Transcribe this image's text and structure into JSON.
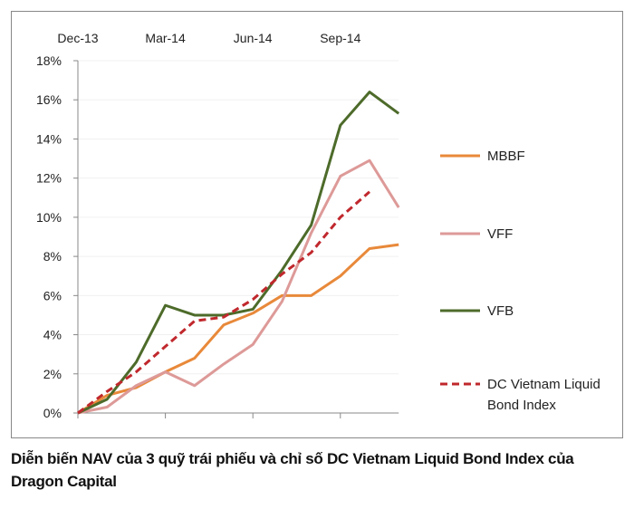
{
  "chart_data": {
    "type": "line",
    "x": [
      "Dec-13",
      "Jan-14",
      "Feb-14",
      "Mar-14",
      "Apr-14",
      "May-14",
      "Jun-14",
      "Jul-14",
      "Aug-14",
      "Sep-14",
      "Oct-14",
      "Nov-14"
    ],
    "x_tick_labels": [
      "Dec-13",
      "Mar-14",
      "Jun-14",
      "Sep-14"
    ],
    "y_tick_labels": [
      "0%",
      "2%",
      "4%",
      "6%",
      "8%",
      "10%",
      "12%",
      "14%",
      "16%",
      "18%"
    ],
    "ylim": [
      0,
      18
    ],
    "grid": true,
    "legend_position": "right",
    "series": [
      {
        "name": "MBBF",
        "color": "#e8893a",
        "dashed": false,
        "values": [
          0,
          0.9,
          1.3,
          2.1,
          2.8,
          4.5,
          5.1,
          6.0,
          6.0,
          7.0,
          8.4,
          8.6
        ]
      },
      {
        "name": "VFF",
        "color": "#dd9a98",
        "dashed": false,
        "values": [
          0,
          0.3,
          1.4,
          2.1,
          1.4,
          2.5,
          3.5,
          5.7,
          9.2,
          12.1,
          12.9,
          10.5
        ]
      },
      {
        "name": "VFB",
        "color": "#4d6b2a",
        "dashed": false,
        "values": [
          0,
          0.7,
          2.6,
          5.5,
          5.0,
          5.0,
          5.3,
          7.3,
          9.6,
          14.7,
          16.4,
          15.3
        ]
      },
      {
        "name": "DC Vietnam Liquid Bond Index",
        "color": "#c0282d",
        "dashed": true,
        "values": [
          0,
          1.1,
          2.1,
          3.4,
          4.7,
          4.9,
          5.8,
          7.1,
          8.2,
          10.0,
          11.3,
          null
        ]
      }
    ]
  },
  "caption": "Diễn biến NAV của 3 quỹ trái phiếu và chỉ số DC Vietnam Liquid Bond Index của Dragon Capital"
}
